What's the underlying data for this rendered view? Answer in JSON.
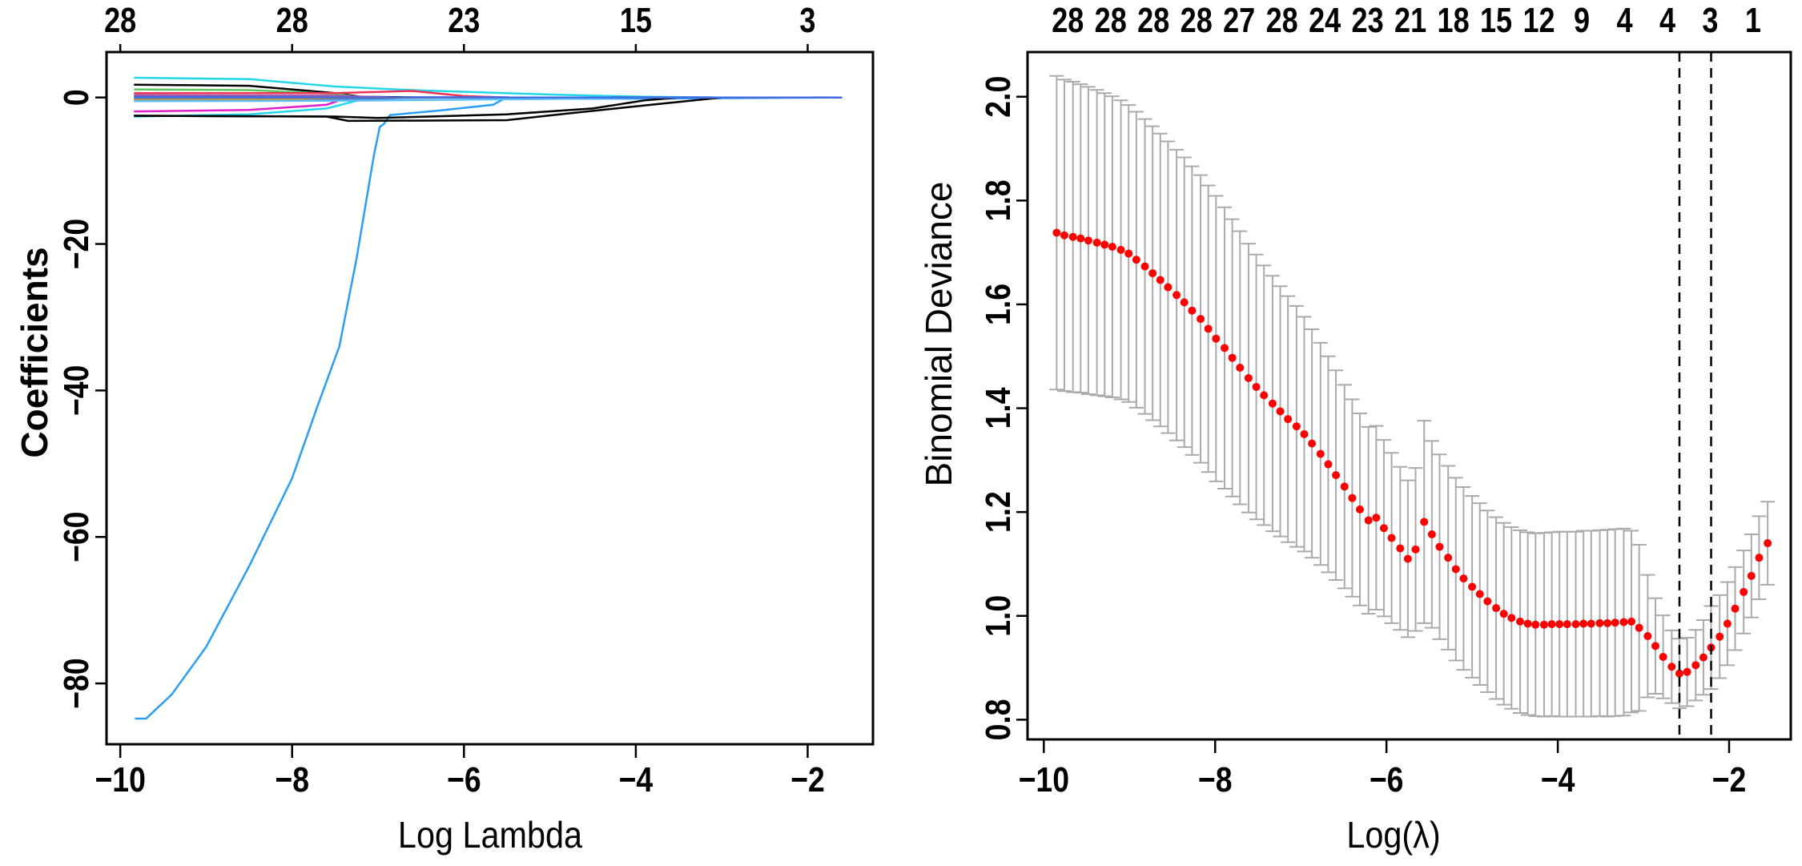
{
  "chart_data": [
    {
      "type": "line",
      "xlabel": "Log Lambda",
      "ylabel": "Coefficients",
      "xlim": [
        -10.16,
        -1.24
      ],
      "ylim": [
        -88.3,
        6.2
      ],
      "x_ticks": [
        -10,
        -8,
        -6,
        -4,
        -2
      ],
      "x_tick_labels": [
        "−10",
        "−8",
        "−6",
        "−4",
        "−2"
      ],
      "y_ticks": [
        0,
        -20,
        -40,
        -60,
        -80
      ],
      "y_tick_labels": [
        "0",
        "−20",
        "−40",
        "−60",
        "−80"
      ],
      "top_axis": {
        "at": [
          -10,
          -8,
          -6,
          -4,
          -2
        ],
        "labels": [
          "28",
          "28",
          "23",
          "15",
          "3"
        ]
      },
      "grid": false,
      "series": [
        {
          "color": "#2a9df4",
          "points": [
            [
              -9.83,
              -84.8
            ],
            [
              -9.7,
              -84.8
            ],
            [
              -9.4,
              -81.5
            ],
            [
              -9.0,
              -75
            ],
            [
              -8.5,
              -64
            ],
            [
              -8.0,
              -52
            ],
            [
              -7.7,
              -42
            ],
            [
              -7.45,
              -34
            ],
            [
              -7.25,
              -22
            ],
            [
              -7.05,
              -8
            ],
            [
              -6.98,
              -4
            ],
            [
              -6.93,
              -3.6
            ],
            [
              -6.86,
              -2.4
            ],
            [
              -6.3,
              -1.8
            ],
            [
              -5.66,
              -1.0
            ],
            [
              -5.54,
              -0.2
            ],
            [
              -4,
              -0.15
            ],
            [
              -1.6,
              0
            ]
          ]
        },
        {
          "color": "#22d8e8",
          "points": [
            [
              -9.84,
              2.7
            ],
            [
              -8.5,
              2.5
            ],
            [
              -7.5,
              1.5
            ],
            [
              -6.6,
              1.0
            ],
            [
              -5,
              0.4
            ],
            [
              -3.9,
              0.1
            ],
            [
              -3,
              0
            ],
            [
              -1.6,
              0
            ]
          ]
        },
        {
          "color": "#000000",
          "points": [
            [
              -9.84,
              1.75
            ],
            [
              -8.5,
              1.6
            ],
            [
              -7.5,
              0.6
            ],
            [
              -7.2,
              0.1
            ],
            [
              -6.5,
              0
            ],
            [
              -1.6,
              0
            ]
          ]
        },
        {
          "color": "#5cc85c",
          "points": [
            [
              -9.84,
              1.1
            ],
            [
              -8.5,
              1.0
            ],
            [
              -7.5,
              0.5
            ],
            [
              -7.2,
              0
            ],
            [
              -1.6,
              0
            ]
          ]
        },
        {
          "color": "#ee3355",
          "points": [
            [
              -9.84,
              0.6
            ],
            [
              -7.5,
              0.6
            ],
            [
              -6.6,
              0.9
            ],
            [
              -6.0,
              0.2
            ],
            [
              -5.5,
              0
            ],
            [
              -1.6,
              0
            ]
          ]
        },
        {
          "color": "#e020c8",
          "points": [
            [
              -9.84,
              -1.9
            ],
            [
              -8.5,
              -1.7
            ],
            [
              -7.6,
              -1.0
            ],
            [
              -7.35,
              0
            ],
            [
              -1.6,
              0
            ]
          ]
        },
        {
          "color": "#22d8e8",
          "points": [
            [
              -9.84,
              -2.6
            ],
            [
              -8.5,
              -2.3
            ],
            [
              -7.6,
              -1.5
            ],
            [
              -7.1,
              0
            ],
            [
              -1.6,
              0
            ]
          ]
        },
        {
          "color": "#000000",
          "points": [
            [
              -9.84,
              -2.5
            ],
            [
              -7.6,
              -2.6
            ],
            [
              -7.35,
              -3.2
            ],
            [
              -5.5,
              -3.1
            ],
            [
              -4.8,
              -2.2
            ],
            [
              -4,
              -1.2
            ],
            [
              -3.0,
              0
            ],
            [
              -1.6,
              0
            ]
          ]
        },
        {
          "color": "#000000",
          "points": [
            [
              -9.84,
              -2.5
            ],
            [
              -7.5,
              -2.6
            ],
            [
              -7.0,
              -2.8
            ],
            [
              -5.5,
              -2.3
            ],
            [
              -4.5,
              -1.5
            ],
            [
              -3.9,
              -0.4
            ],
            [
              -3.5,
              0
            ],
            [
              -1.6,
              0
            ]
          ]
        },
        {
          "color": "#3b6fe0",
          "points": [
            [
              -9.84,
              -0.4
            ],
            [
              -7.5,
              -0.3
            ],
            [
              -6.5,
              0
            ],
            [
              -1.6,
              0
            ]
          ]
        },
        {
          "color": "#20b2aa",
          "points": [
            [
              -9.84,
              0.2
            ],
            [
              -7.8,
              0.2
            ],
            [
              -7.0,
              0
            ],
            [
              -1.6,
              0
            ]
          ]
        },
        {
          "color": "#ff9900",
          "points": [
            [
              -9.84,
              -0.2
            ],
            [
              -8.0,
              -0.2
            ],
            [
              -7.2,
              0
            ],
            [
              -1.6,
              0
            ]
          ]
        },
        {
          "color": "#9b59b6",
          "points": [
            [
              -9.84,
              0.3
            ],
            [
              -7.6,
              0.25
            ],
            [
              -6.8,
              0
            ],
            [
              -1.6,
              0
            ]
          ]
        },
        {
          "color": "#888888",
          "points": [
            [
              -9.84,
              -0.1
            ],
            [
              -7.0,
              -0.05
            ],
            [
              -6.0,
              0
            ],
            [
              -1.6,
              0
            ]
          ]
        },
        {
          "color": "#5bc0f8",
          "points": [
            [
              -9.84,
              -0.5
            ],
            [
              -7.5,
              -0.45
            ],
            [
              -5.0,
              -0.2
            ],
            [
              -4.0,
              0
            ],
            [
              -1.6,
              0
            ]
          ]
        },
        {
          "color": "#4169e1",
          "points": [
            [
              -9.84,
              0.05
            ],
            [
              -1.6,
              0
            ]
          ]
        }
      ]
    },
    {
      "type": "scatter",
      "xlabel": "Log(λ)",
      "ylabel": "Binomial Deviance",
      "xlim": [
        -10.19,
        -1.28
      ],
      "ylim": [
        0.762,
        2.086
      ],
      "x_ticks": [
        -10,
        -8,
        -6,
        -4,
        -2
      ],
      "x_tick_labels": [
        "−10",
        "−8",
        "−6",
        "−4",
        "−2"
      ],
      "y_ticks": [
        0.8,
        1.0,
        1.2,
        1.4,
        1.6,
        1.8,
        2.0
      ],
      "y_tick_labels": [
        "0.8",
        "1.0",
        "1.2",
        "1.4",
        "1.6",
        "1.8",
        "2.0"
      ],
      "top_axis": {
        "at": [
          -9.72,
          -9.22,
          -8.72,
          -8.22,
          -7.72,
          -7.22,
          -6.72,
          -6.22,
          -5.72,
          -5.22,
          -4.72,
          -4.22,
          -3.72,
          -3.22,
          -2.72,
          -2.22,
          -1.72
        ],
        "labels": [
          "28",
          "28",
          "28",
          "28",
          "27",
          "28",
          "24",
          "23",
          "21",
          "18",
          "15",
          "12",
          "9",
          "4",
          "4",
          "3",
          "1"
        ]
      },
      "vlines": [
        -2.58,
        -2.21
      ],
      "grid": false,
      "point_color": "#ff0000",
      "errorbar_color": "#aaaaaa",
      "x": [
        -9.85,
        -9.76,
        -9.66,
        -9.57,
        -9.48,
        -9.38,
        -9.29,
        -9.2,
        -9.1,
        -9.01,
        -8.92,
        -8.82,
        -8.73,
        -8.64,
        -8.55,
        -8.45,
        -8.36,
        -8.27,
        -8.17,
        -8.08,
        -7.99,
        -7.89,
        -7.8,
        -7.71,
        -7.61,
        -7.52,
        -7.43,
        -7.33,
        -7.24,
        -7.15,
        -7.05,
        -6.96,
        -6.87,
        -6.77,
        -6.68,
        -6.59,
        -6.49,
        -6.4,
        -6.31,
        -6.21,
        -6.12,
        -6.03,
        -5.94,
        -5.84,
        -5.75,
        -5.66,
        -5.56,
        -5.47,
        -5.38,
        -5.28,
        -5.19,
        -5.1,
        -5.0,
        -4.91,
        -4.82,
        -4.72,
        -4.63,
        -4.54,
        -4.44,
        -4.35,
        -4.26,
        -4.16,
        -4.07,
        -3.98,
        -3.89,
        -3.79,
        -3.7,
        -3.61,
        -3.51,
        -3.42,
        -3.33,
        -3.23,
        -3.14,
        -3.05,
        -2.95,
        -2.86,
        -2.77,
        -2.67,
        -2.58,
        -2.49,
        -2.39,
        -2.3,
        -2.21,
        -2.11,
        -2.02,
        -1.93,
        -1.83,
        -1.74,
        -1.65,
        -1.55
      ],
      "deviance": [
        1.738,
        1.733,
        1.73,
        1.727,
        1.723,
        1.719,
        1.715,
        1.711,
        1.705,
        1.698,
        1.686,
        1.673,
        1.66,
        1.647,
        1.633,
        1.618,
        1.604,
        1.588,
        1.572,
        1.553,
        1.534,
        1.516,
        1.497,
        1.478,
        1.458,
        1.441,
        1.425,
        1.409,
        1.394,
        1.379,
        1.365,
        1.35,
        1.332,
        1.312,
        1.292,
        1.271,
        1.249,
        1.227,
        1.205,
        1.184,
        1.189,
        1.169,
        1.15,
        1.13,
        1.11,
        1.128,
        1.181,
        1.157,
        1.133,
        1.112,
        1.09,
        1.072,
        1.056,
        1.042,
        1.028,
        1.015,
        1.004,
        0.996,
        0.989,
        0.985,
        0.983,
        0.983,
        0.984,
        0.984,
        0.984,
        0.984,
        0.985,
        0.985,
        0.986,
        0.986,
        0.987,
        0.988,
        0.989,
        0.977,
        0.961,
        0.942,
        0.921,
        0.902,
        0.889,
        0.892,
        0.905,
        0.92,
        0.939,
        0.96,
        0.985,
        1.014,
        1.046,
        1.077,
        1.112,
        1.14
      ],
      "error": [
        0.302,
        0.3,
        0.299,
        0.297,
        0.296,
        0.294,
        0.292,
        0.29,
        0.288,
        0.286,
        0.285,
        0.284,
        0.283,
        0.282,
        0.281,
        0.28,
        0.279,
        0.278,
        0.277,
        0.276,
        0.275,
        0.271,
        0.267,
        0.263,
        0.259,
        0.255,
        0.25,
        0.246,
        0.241,
        0.237,
        0.232,
        0.226,
        0.22,
        0.214,
        0.208,
        0.202,
        0.196,
        0.19,
        0.185,
        0.18,
        0.177,
        0.17,
        0.164,
        0.157,
        0.151,
        0.157,
        0.195,
        0.18,
        0.178,
        0.177,
        0.176,
        0.176,
        0.175,
        0.175,
        0.175,
        0.175,
        0.175,
        0.175,
        0.176,
        0.176,
        0.176,
        0.177,
        0.177,
        0.178,
        0.178,
        0.178,
        0.179,
        0.179,
        0.179,
        0.18,
        0.18,
        0.18,
        0.175,
        0.16,
        0.118,
        0.092,
        0.08,
        0.07,
        0.067,
        0.066,
        0.068,
        0.072,
        0.08,
        0.08,
        0.08,
        0.08,
        0.08,
        0.08,
        0.08,
        0.08
      ]
    }
  ]
}
